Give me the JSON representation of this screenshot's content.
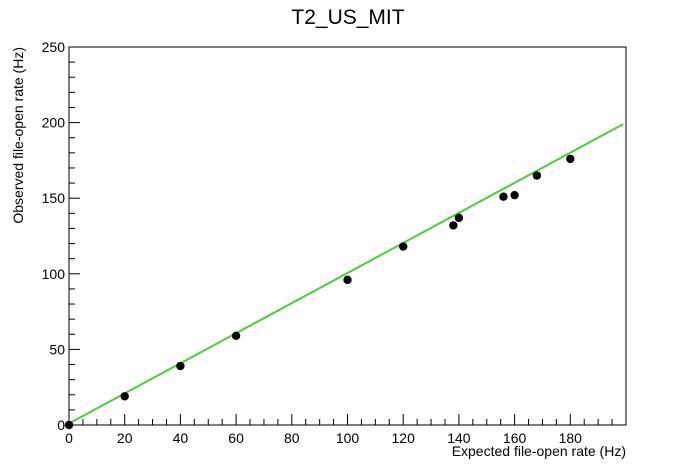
{
  "chart_data": {
    "type": "scatter",
    "title": "T2_US_MIT",
    "xlabel": "Expected file-open rate (Hz)",
    "ylabel": "Observed file-open rate (Hz)",
    "xlim": [
      0,
      200
    ],
    "ylim": [
      0,
      250
    ],
    "x_ticks": [
      0,
      20,
      40,
      60,
      80,
      100,
      120,
      140,
      160,
      180
    ],
    "y_ticks": [
      0,
      50,
      100,
      150,
      200,
      250
    ],
    "grid": false,
    "series": [
      {
        "type": "scatter",
        "color": "#000000",
        "x": [
          0,
          20,
          40,
          60,
          100,
          120,
          138,
          140,
          156,
          160,
          168,
          180
        ],
        "y": [
          0,
          19,
          39,
          59,
          96,
          118,
          132,
          137,
          151,
          152,
          165,
          176
        ]
      },
      {
        "type": "line",
        "color": "#4ccc3f",
        "x": [
          0,
          199
        ],
        "y": [
          1,
          199
        ]
      }
    ]
  }
}
